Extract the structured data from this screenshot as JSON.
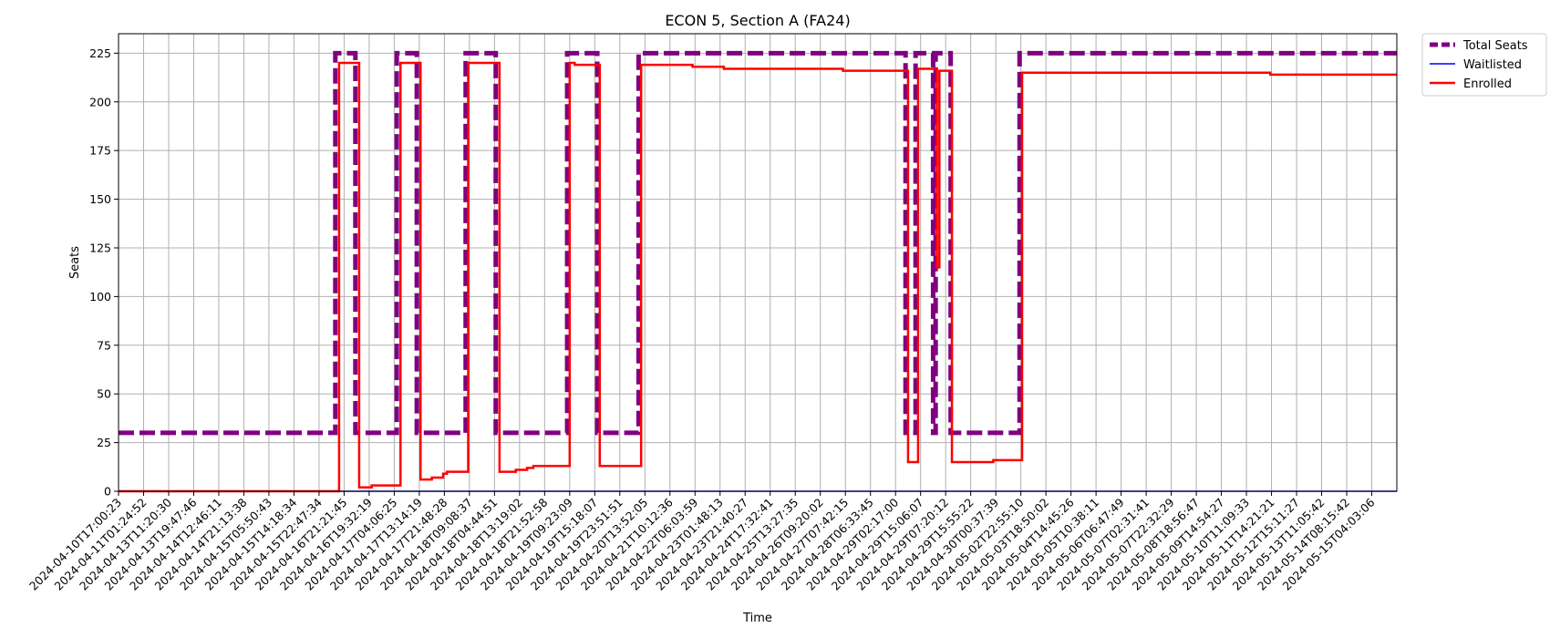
{
  "chart_data": {
    "type": "line",
    "title": "ECON 5, Section A (FA24)",
    "xlabel": "Time",
    "ylabel": "Seats",
    "ylim": [
      0,
      235
    ],
    "yticks": [
      0,
      25,
      50,
      75,
      100,
      125,
      150,
      175,
      200,
      225
    ],
    "xlim": [
      0,
      51
    ],
    "grid": true,
    "legend_position": "outside-top-right",
    "x_tick_labels": [
      "2024-04-10T17:00:23",
      "2024-04-11T01:24:52",
      "2024-04-13T11:20:30",
      "2024-04-13T19:47:46",
      "2024-04-14T12:46:11",
      "2024-04-14T21:13:38",
      "2024-04-15T05:50:43",
      "2024-04-15T14:18:34",
      "2024-04-15T22:47:34",
      "2024-04-16T21:21:45",
      "2024-04-16T19:32:19",
      "2024-04-17T04:06:25",
      "2024-04-17T13:14:19",
      "2024-04-17T21:48:28",
      "2024-04-18T09:08:37",
      "2024-04-18T04:44:51",
      "2024-04-18T13:19:02",
      "2024-04-18T21:52:58",
      "2024-04-19T09:23:09",
      "2024-04-19T15:18:07",
      "2024-04-19T23:51:51",
      "2024-04-20T13:52:05",
      "2024-04-21T10:12:36",
      "2024-04-22T06:03:59",
      "2024-04-23T01:48:13",
      "2024-04-23T21:40:27",
      "2024-04-24T17:32:41",
      "2024-04-25T13:27:35",
      "2024-04-26T09:20:02",
      "2024-04-27T07:42:15",
      "2024-04-28T06:33:45",
      "2024-04-29T02:17:00",
      "2024-04-29T15:06:07",
      "2024-04-29T07:20:12",
      "2024-04-29T15:55:22",
      "2024-04-30T00:37:39",
      "2024-05-02T22:55:10",
      "2024-05-03T18:50:02",
      "2024-05-04T14:45:26",
      "2024-05-05T10:38:11",
      "2024-05-06T06:47:49",
      "2024-05-07T02:31:41",
      "2024-05-07T22:32:29",
      "2024-05-08T18:56:47",
      "2024-05-09T14:54:27",
      "2024-05-10T11:09:33",
      "2024-05-11T14:21:21",
      "2024-05-12T15:11:27",
      "2024-05-13T11:05:42",
      "2024-05-14T08:15:42",
      "2024-05-15T04:03:06"
    ],
    "series": [
      {
        "name": "Total Seats",
        "color": "#800080",
        "style": "dashed",
        "points": [
          [
            0,
            30
          ],
          [
            8.65,
            30
          ],
          [
            8.65,
            225
          ],
          [
            9.45,
            225
          ],
          [
            9.45,
            30
          ],
          [
            11.1,
            30
          ],
          [
            11.1,
            225
          ],
          [
            11.9,
            225
          ],
          [
            11.9,
            30
          ],
          [
            13.85,
            30
          ],
          [
            13.85,
            225
          ],
          [
            15.05,
            225
          ],
          [
            15.05,
            30
          ],
          [
            17.9,
            30
          ],
          [
            17.9,
            225
          ],
          [
            19.1,
            225
          ],
          [
            19.1,
            30
          ],
          [
            20.75,
            30
          ],
          [
            20.75,
            225
          ],
          [
            31.4,
            225
          ],
          [
            31.4,
            30
          ],
          [
            31.8,
            30
          ],
          [
            31.8,
            225
          ],
          [
            32.5,
            225
          ],
          [
            32.5,
            30
          ],
          [
            32.6,
            30
          ],
          [
            32.6,
            225
          ],
          [
            33.2,
            225
          ],
          [
            33.2,
            30
          ],
          [
            35.95,
            30
          ],
          [
            35.95,
            225
          ],
          [
            51,
            225
          ]
        ]
      },
      {
        "name": "Waitlisted",
        "color": "#0000ff",
        "style": "solid",
        "points": [
          [
            0,
            0
          ],
          [
            51,
            0
          ]
        ]
      },
      {
        "name": "Enrolled",
        "color": "#ff0000",
        "style": "solid",
        "points": [
          [
            0,
            0
          ],
          [
            8.8,
            0
          ],
          [
            8.8,
            220
          ],
          [
            9.6,
            220
          ],
          [
            9.6,
            2
          ],
          [
            10.1,
            2
          ],
          [
            10.1,
            3
          ],
          [
            11.25,
            3
          ],
          [
            11.25,
            220
          ],
          [
            12.05,
            220
          ],
          [
            12.05,
            6
          ],
          [
            12.5,
            6
          ],
          [
            12.5,
            7
          ],
          [
            12.95,
            7
          ],
          [
            12.95,
            9
          ],
          [
            13.1,
            9
          ],
          [
            13.1,
            10
          ],
          [
            13.95,
            10
          ],
          [
            13.95,
            220
          ],
          [
            15.2,
            220
          ],
          [
            15.2,
            10
          ],
          [
            15.85,
            10
          ],
          [
            15.85,
            11
          ],
          [
            16.3,
            11
          ],
          [
            16.3,
            12
          ],
          [
            16.55,
            12
          ],
          [
            16.55,
            13
          ],
          [
            18.0,
            13
          ],
          [
            18.0,
            220
          ],
          [
            18.2,
            220
          ],
          [
            18.2,
            219
          ],
          [
            19.2,
            219
          ],
          [
            19.2,
            13
          ],
          [
            20.85,
            13
          ],
          [
            20.85,
            219
          ],
          [
            22.9,
            219
          ],
          [
            22.9,
            218
          ],
          [
            24.15,
            218
          ],
          [
            24.15,
            217
          ],
          [
            28.9,
            217
          ],
          [
            28.9,
            216
          ],
          [
            31.5,
            216
          ],
          [
            31.5,
            15
          ],
          [
            31.9,
            15
          ],
          [
            31.9,
            217
          ],
          [
            32.65,
            217
          ],
          [
            32.65,
            115
          ],
          [
            32.75,
            115
          ],
          [
            32.75,
            216
          ],
          [
            33.25,
            216
          ],
          [
            33.25,
            15
          ],
          [
            34.9,
            15
          ],
          [
            34.9,
            16
          ],
          [
            36.05,
            16
          ],
          [
            36.05,
            215
          ],
          [
            45.95,
            215
          ],
          [
            45.95,
            214
          ],
          [
            51,
            214
          ]
        ]
      }
    ]
  }
}
